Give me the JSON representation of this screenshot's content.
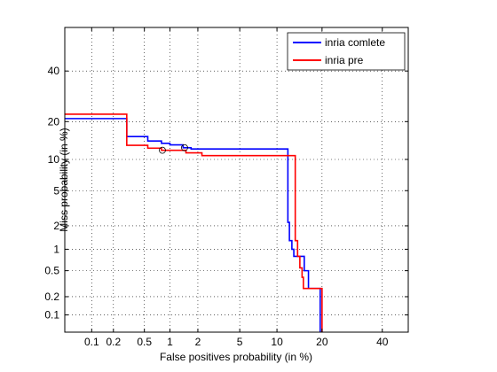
{
  "chart_data": {
    "type": "line",
    "title": "",
    "xlabel": "False positives probability (in %)",
    "ylabel": "Miss probability (in %)",
    "x_scale": "probit",
    "y_scale": "probit",
    "xlim": [
      0.04,
      50
    ],
    "ylim": [
      0.05,
      60
    ],
    "xticks": [
      0.1,
      0.2,
      0.5,
      1,
      2,
      5,
      10,
      20,
      40
    ],
    "xtick_labels": [
      "0.1",
      "0.2",
      "0.5",
      "1",
      "2",
      "5",
      "10",
      "20",
      "40"
    ],
    "yticks": [
      0.1,
      0.2,
      0.5,
      1,
      2,
      5,
      10,
      20,
      40
    ],
    "ytick_labels": [
      "0.1",
      "0.2",
      "0.5",
      "1",
      "2",
      "5",
      "10",
      "20",
      "40"
    ],
    "grid": true,
    "legend_position": "top-right",
    "series": [
      {
        "name": "inria comlete",
        "color": "#0000ff",
        "points": [
          [
            0.04,
            21
          ],
          [
            0.3,
            21
          ],
          [
            0.3,
            15.5
          ],
          [
            0.55,
            15.5
          ],
          [
            0.55,
            14.3
          ],
          [
            0.8,
            14.3
          ],
          [
            0.8,
            13.7
          ],
          [
            1.0,
            13.7
          ],
          [
            1.0,
            13.3
          ],
          [
            1.4,
            13.3
          ],
          [
            1.4,
            12.6
          ],
          [
            1.7,
            12.6
          ],
          [
            1.7,
            12.3
          ],
          [
            12.0,
            12.3
          ],
          [
            12.0,
            2.2
          ],
          [
            12.3,
            2.2
          ],
          [
            12.3,
            1.3
          ],
          [
            12.8,
            1.3
          ],
          [
            12.8,
            1.0
          ],
          [
            13.2,
            1.0
          ],
          [
            13.2,
            0.8
          ],
          [
            15.5,
            0.8
          ],
          [
            15.5,
            0.5
          ],
          [
            16.5,
            0.5
          ],
          [
            16.5,
            0.27
          ],
          [
            19.5,
            0.27
          ],
          [
            19.5,
            0.05
          ]
        ],
        "marker": {
          "x": 1.45,
          "y": 12.6
        }
      },
      {
        "name": "inria pre",
        "color": "#ff0000",
        "points": [
          [
            0.04,
            22.5
          ],
          [
            0.3,
            22.5
          ],
          [
            0.3,
            13.2
          ],
          [
            0.55,
            13.2
          ],
          [
            0.55,
            12.5
          ],
          [
            0.8,
            12.5
          ],
          [
            0.8,
            12.0
          ],
          [
            1.5,
            12.0
          ],
          [
            1.5,
            11.4
          ],
          [
            2.2,
            11.4
          ],
          [
            2.2,
            10.8
          ],
          [
            13.5,
            10.8
          ],
          [
            13.5,
            1.3
          ],
          [
            14.0,
            1.3
          ],
          [
            14.0,
            0.8
          ],
          [
            14.5,
            0.8
          ],
          [
            14.5,
            0.55
          ],
          [
            15.0,
            0.55
          ],
          [
            15.0,
            0.4
          ],
          [
            15.3,
            0.4
          ],
          [
            15.3,
            0.27
          ],
          [
            20.0,
            0.27
          ],
          [
            20.0,
            0.05
          ]
        ],
        "marker": {
          "x": 0.82,
          "y": 12.0
        }
      }
    ]
  }
}
